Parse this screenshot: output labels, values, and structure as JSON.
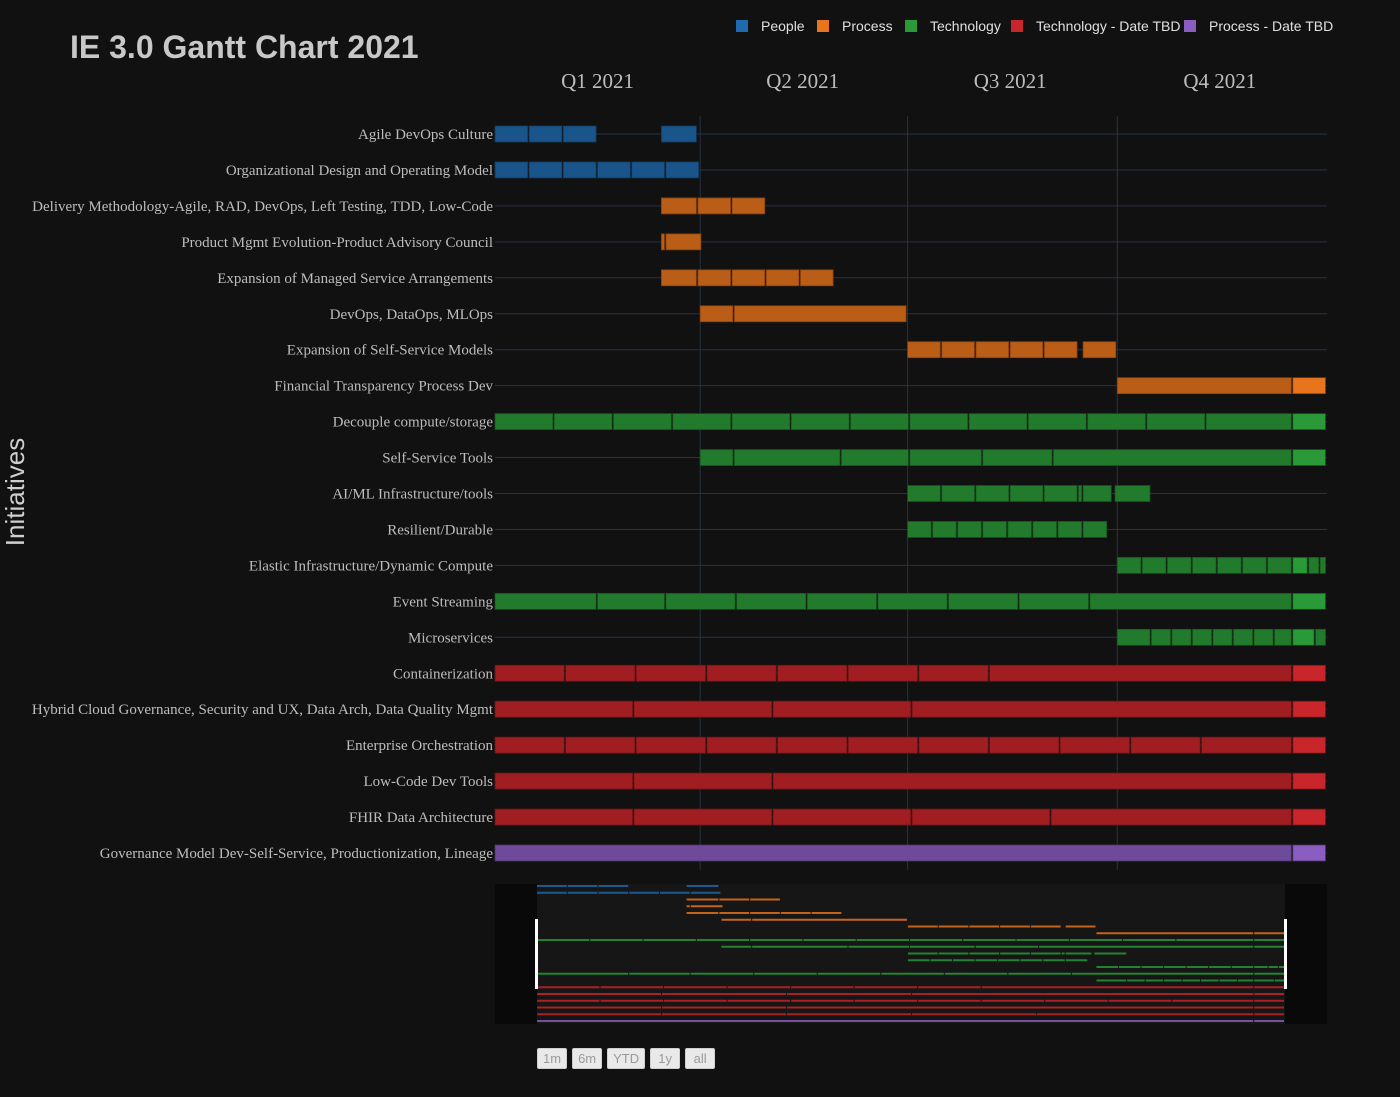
{
  "chart_data": {
    "type": "gantt",
    "title": "IE 3.0 Gantt Chart 2021",
    "ylabel": "Initiatives",
    "x_range": [
      "2021-01-01",
      "2021-12-31"
    ],
    "quarter_labels": [
      {
        "label": "Q1 2021",
        "date": "2021-02-15"
      },
      {
        "label": "Q2 2021",
        "date": "2021-05-16"
      },
      {
        "label": "Q3 2021",
        "date": "2021-08-15"
      },
      {
        "label": "Q4 2021",
        "date": "2021-11-15"
      }
    ],
    "quarter_gridlines": [
      "2021-04-01",
      "2021-07-01",
      "2021-10-01"
    ],
    "legend": [
      {
        "name": "People",
        "color": "#1f6aad"
      },
      {
        "name": "Process",
        "color": "#e8741c"
      },
      {
        "name": "Technology",
        "color": "#2a9a38"
      },
      {
        "name": "Technology - Date TBD",
        "color": "#c8262a"
      },
      {
        "name": "Process - Date TBD",
        "color": "#8a5ec0"
      }
    ],
    "rows": [
      {
        "name": "Agile DevOps Culture",
        "category": "People",
        "segments": [
          [
            "2021-01-01",
            "2021-01-15"
          ],
          [
            "2021-01-16",
            "2021-01-30"
          ],
          [
            "2021-01-31",
            "2021-02-14"
          ],
          [
            "2021-03-15",
            "2021-03-30"
          ]
        ]
      },
      {
        "name": "Organizational Design and Operating Model",
        "category": "People",
        "segments": [
          [
            "2021-01-01",
            "2021-01-15"
          ],
          [
            "2021-01-16",
            "2021-01-30"
          ],
          [
            "2021-01-31",
            "2021-02-14"
          ],
          [
            "2021-02-15",
            "2021-03-01"
          ],
          [
            "2021-03-02",
            "2021-03-16"
          ],
          [
            "2021-03-17",
            "2021-03-31"
          ]
        ]
      },
      {
        "name": "Delivery Methodology-Agile, RAD, DevOps, Left Testing, TDD, Low-Code",
        "category": "Process",
        "segments": [
          [
            "2021-03-15",
            "2021-03-30"
          ],
          [
            "2021-03-31",
            "2021-04-14"
          ],
          [
            "2021-04-15",
            "2021-04-29"
          ]
        ]
      },
      {
        "name": "Product Mgmt Evolution-Product Advisory Council",
        "category": "Process",
        "segments": [
          [
            "2021-03-15",
            "2021-03-16"
          ],
          [
            "2021-03-17",
            "2021-04-01"
          ]
        ]
      },
      {
        "name": "Expansion of Managed Service Arrangements",
        "category": "Process",
        "segments": [
          [
            "2021-03-15",
            "2021-03-30"
          ],
          [
            "2021-03-31",
            "2021-04-14"
          ],
          [
            "2021-04-15",
            "2021-04-29"
          ],
          [
            "2021-04-30",
            "2021-05-14"
          ],
          [
            "2021-05-15",
            "2021-05-29"
          ]
        ]
      },
      {
        "name": "DevOps, DataOps, MLOps",
        "category": "Process",
        "segments": [
          [
            "2021-04-01",
            "2021-04-15"
          ],
          [
            "2021-04-16",
            "2021-06-30"
          ]
        ]
      },
      {
        "name": "Expansion of Self-Service Models",
        "category": "Process",
        "segments": [
          [
            "2021-07-01",
            "2021-07-15"
          ],
          [
            "2021-07-16",
            "2021-07-30"
          ],
          [
            "2021-07-31",
            "2021-08-14"
          ],
          [
            "2021-08-15",
            "2021-08-29"
          ],
          [
            "2021-08-30",
            "2021-09-13"
          ],
          [
            "2021-09-16",
            "2021-09-30"
          ]
        ]
      },
      {
        "name": "Financial Transparency Process Dev",
        "category": "Process",
        "segments": [
          [
            "2021-10-01",
            "2021-12-16"
          ],
          [
            "2021-12-17",
            "2021-12-31"
          ]
        ]
      },
      {
        "name": "Decouple compute/storage",
        "category": "Technology",
        "segments": [
          [
            "2021-01-01",
            "2021-01-26"
          ],
          [
            "2021-01-27",
            "2021-02-21"
          ],
          [
            "2021-02-22",
            "2021-03-19"
          ],
          [
            "2021-03-20",
            "2021-04-14"
          ],
          [
            "2021-04-15",
            "2021-05-10"
          ],
          [
            "2021-05-11",
            "2021-06-05"
          ],
          [
            "2021-06-06",
            "2021-07-01"
          ],
          [
            "2021-07-02",
            "2021-07-27"
          ],
          [
            "2021-07-28",
            "2021-08-22"
          ],
          [
            "2021-08-23",
            "2021-09-17"
          ],
          [
            "2021-09-18",
            "2021-10-13"
          ],
          [
            "2021-10-14",
            "2021-11-08"
          ],
          [
            "2021-11-09",
            "2021-12-16"
          ],
          [
            "2021-12-17",
            "2021-12-31"
          ]
        ]
      },
      {
        "name": "Self-Service Tools",
        "category": "Technology",
        "segments": [
          [
            "2021-04-01",
            "2021-04-15"
          ],
          [
            "2021-04-16",
            "2021-06-01"
          ],
          [
            "2021-06-02",
            "2021-07-01"
          ],
          [
            "2021-07-02",
            "2021-08-02"
          ],
          [
            "2021-08-03",
            "2021-09-02"
          ],
          [
            "2021-09-03",
            "2021-12-16"
          ],
          [
            "2021-12-17",
            "2021-12-31"
          ]
        ]
      },
      {
        "name": "AI/ML Infrastructure/tools",
        "category": "Technology",
        "segments": [
          [
            "2021-07-01",
            "2021-07-15"
          ],
          [
            "2021-07-16",
            "2021-07-30"
          ],
          [
            "2021-07-31",
            "2021-08-14"
          ],
          [
            "2021-08-15",
            "2021-08-29"
          ],
          [
            "2021-08-30",
            "2021-09-13"
          ],
          [
            "2021-09-14",
            "2021-09-15"
          ],
          [
            "2021-09-16",
            "2021-09-28"
          ],
          [
            "2021-09-30",
            "2021-10-15"
          ]
        ]
      },
      {
        "name": "Resilient/Durable",
        "category": "Technology",
        "segments": [
          [
            "2021-07-01",
            "2021-07-11"
          ],
          [
            "2021-07-12",
            "2021-07-22"
          ],
          [
            "2021-07-23",
            "2021-08-02"
          ],
          [
            "2021-08-03",
            "2021-08-13"
          ],
          [
            "2021-08-14",
            "2021-08-24"
          ],
          [
            "2021-08-25",
            "2021-09-04"
          ],
          [
            "2021-09-05",
            "2021-09-15"
          ],
          [
            "2021-09-16",
            "2021-09-26"
          ]
        ]
      },
      {
        "name": "Elastic Infrastructure/Dynamic Compute",
        "category": "Technology",
        "segments": [
          [
            "2021-10-01",
            "2021-10-11"
          ],
          [
            "2021-10-12",
            "2021-10-22"
          ],
          [
            "2021-10-23",
            "2021-11-02"
          ],
          [
            "2021-11-03",
            "2021-11-13"
          ],
          [
            "2021-11-14",
            "2021-11-24"
          ],
          [
            "2021-11-25",
            "2021-12-05"
          ],
          [
            "2021-12-06",
            "2021-12-16"
          ],
          [
            "2021-12-17",
            "2021-12-23"
          ],
          [
            "2021-12-24",
            "2021-12-28"
          ],
          [
            "2021-12-29",
            "2021-12-31"
          ]
        ]
      },
      {
        "name": "Event Streaming",
        "category": "Technology",
        "segments": [
          [
            "2021-01-01",
            "2021-02-14"
          ],
          [
            "2021-02-15",
            "2021-03-16"
          ],
          [
            "2021-03-17",
            "2021-04-16"
          ],
          [
            "2021-04-17",
            "2021-05-17"
          ],
          [
            "2021-05-18",
            "2021-06-17"
          ],
          [
            "2021-06-18",
            "2021-07-18"
          ],
          [
            "2021-07-19",
            "2021-08-18"
          ],
          [
            "2021-08-19",
            "2021-09-18"
          ],
          [
            "2021-09-19",
            "2021-12-16"
          ],
          [
            "2021-12-17",
            "2021-12-31"
          ]
        ]
      },
      {
        "name": "Microservices",
        "category": "Technology",
        "segments": [
          [
            "2021-10-01",
            "2021-10-15"
          ],
          [
            "2021-10-16",
            "2021-10-24"
          ],
          [
            "2021-10-25",
            "2021-11-02"
          ],
          [
            "2021-11-03",
            "2021-11-11"
          ],
          [
            "2021-11-12",
            "2021-11-20"
          ],
          [
            "2021-11-21",
            "2021-11-29"
          ],
          [
            "2021-11-30",
            "2021-12-08"
          ],
          [
            "2021-12-09",
            "2021-12-16"
          ],
          [
            "2021-12-17",
            "2021-12-26"
          ],
          [
            "2021-12-27",
            "2021-12-31"
          ]
        ]
      },
      {
        "name": "Containerization",
        "category": "Technology - Date TBD",
        "segments": [
          [
            "2021-01-01",
            "2021-01-31"
          ],
          [
            "2021-02-01",
            "2021-03-03"
          ],
          [
            "2021-03-04",
            "2021-04-03"
          ],
          [
            "2021-04-04",
            "2021-05-04"
          ],
          [
            "2021-05-05",
            "2021-06-04"
          ],
          [
            "2021-06-05",
            "2021-07-05"
          ],
          [
            "2021-07-06",
            "2021-08-05"
          ],
          [
            "2021-08-06",
            "2021-12-16"
          ],
          [
            "2021-12-17",
            "2021-12-31"
          ]
        ]
      },
      {
        "name": "Hybrid Cloud Governance, Security and UX, Data Arch, Data Quality Mgmt",
        "category": "Technology - Date TBD",
        "segments": [
          [
            "2021-01-01",
            "2021-03-02"
          ],
          [
            "2021-03-03",
            "2021-05-02"
          ],
          [
            "2021-05-03",
            "2021-07-02"
          ],
          [
            "2021-07-03",
            "2021-12-16"
          ],
          [
            "2021-12-17",
            "2021-12-31"
          ]
        ]
      },
      {
        "name": "Enterprise Orchestration",
        "category": "Technology - Date TBD",
        "segments": [
          [
            "2021-01-01",
            "2021-01-31"
          ],
          [
            "2021-02-01",
            "2021-03-03"
          ],
          [
            "2021-03-04",
            "2021-04-03"
          ],
          [
            "2021-04-04",
            "2021-05-04"
          ],
          [
            "2021-05-05",
            "2021-06-04"
          ],
          [
            "2021-06-05",
            "2021-07-05"
          ],
          [
            "2021-07-06",
            "2021-08-05"
          ],
          [
            "2021-08-06",
            "2021-09-05"
          ],
          [
            "2021-09-06",
            "2021-10-06"
          ],
          [
            "2021-10-07",
            "2021-11-06"
          ],
          [
            "2021-11-07",
            "2021-12-16"
          ],
          [
            "2021-12-17",
            "2021-12-31"
          ]
        ]
      },
      {
        "name": "Low-Code Dev Tools",
        "category": "Technology - Date TBD",
        "segments": [
          [
            "2021-01-01",
            "2021-03-02"
          ],
          [
            "2021-03-03",
            "2021-05-02"
          ],
          [
            "2021-05-03",
            "2021-12-16"
          ],
          [
            "2021-12-17",
            "2021-12-31"
          ]
        ]
      },
      {
        "name": "FHIR Data Architecture",
        "category": "Technology - Date TBD",
        "segments": [
          [
            "2021-01-01",
            "2021-03-02"
          ],
          [
            "2021-03-03",
            "2021-05-02"
          ],
          [
            "2021-05-03",
            "2021-07-02"
          ],
          [
            "2021-07-03",
            "2021-09-01"
          ],
          [
            "2021-09-02",
            "2021-12-16"
          ],
          [
            "2021-12-17",
            "2021-12-31"
          ]
        ]
      },
      {
        "name": "Governance Model Dev-Self-Service, Productionization, Lineage",
        "category": "Process - Date TBD",
        "segments": [
          [
            "2021-01-01",
            "2021-12-16"
          ],
          [
            "2021-12-17",
            "2021-12-31"
          ]
        ]
      }
    ],
    "range_selector": {
      "buttons": [
        "1m",
        "6m",
        "YTD",
        "1y",
        "all"
      ]
    }
  }
}
